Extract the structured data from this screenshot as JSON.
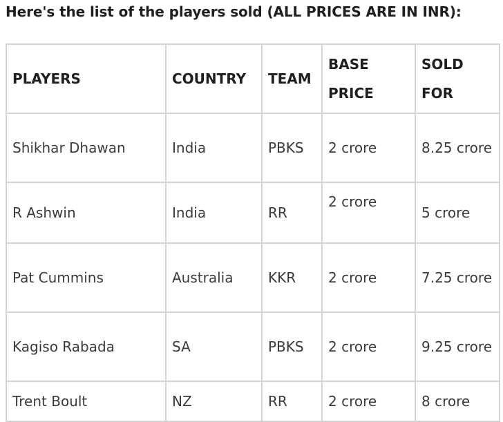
{
  "heading": "Here's the list of the players sold (ALL PRICES ARE IN INR):",
  "table": {
    "headers": {
      "players": "PLAYERS",
      "country": "COUNTRY",
      "team": "TEAM",
      "base_price": "BASE PRICE",
      "sold_for": "SOLD FOR"
    },
    "rows": [
      {
        "player": "Shikhar Dhawan",
        "country": "India",
        "team": "PBKS",
        "base_price": "2 crore",
        "sold_for": "8.25 crore"
      },
      {
        "player": "R Ashwin",
        "country": "India",
        "team": "RR",
        "base_price": "2 crore",
        "sold_for": "5 crore"
      },
      {
        "player": "Pat Cummins",
        "country": "Australia",
        "team": "KKR",
        "base_price": "2 crore",
        "sold_for": "7.25 crore"
      },
      {
        "player": "Kagiso Rabada",
        "country": "SA",
        "team": "PBKS",
        "base_price": "2 crore",
        "sold_for": "9.25 crore"
      },
      {
        "player": "Trent Boult",
        "country": "NZ",
        "team": "RR",
        "base_price": "2 crore",
        "sold_for": "8 crore"
      }
    ]
  }
}
